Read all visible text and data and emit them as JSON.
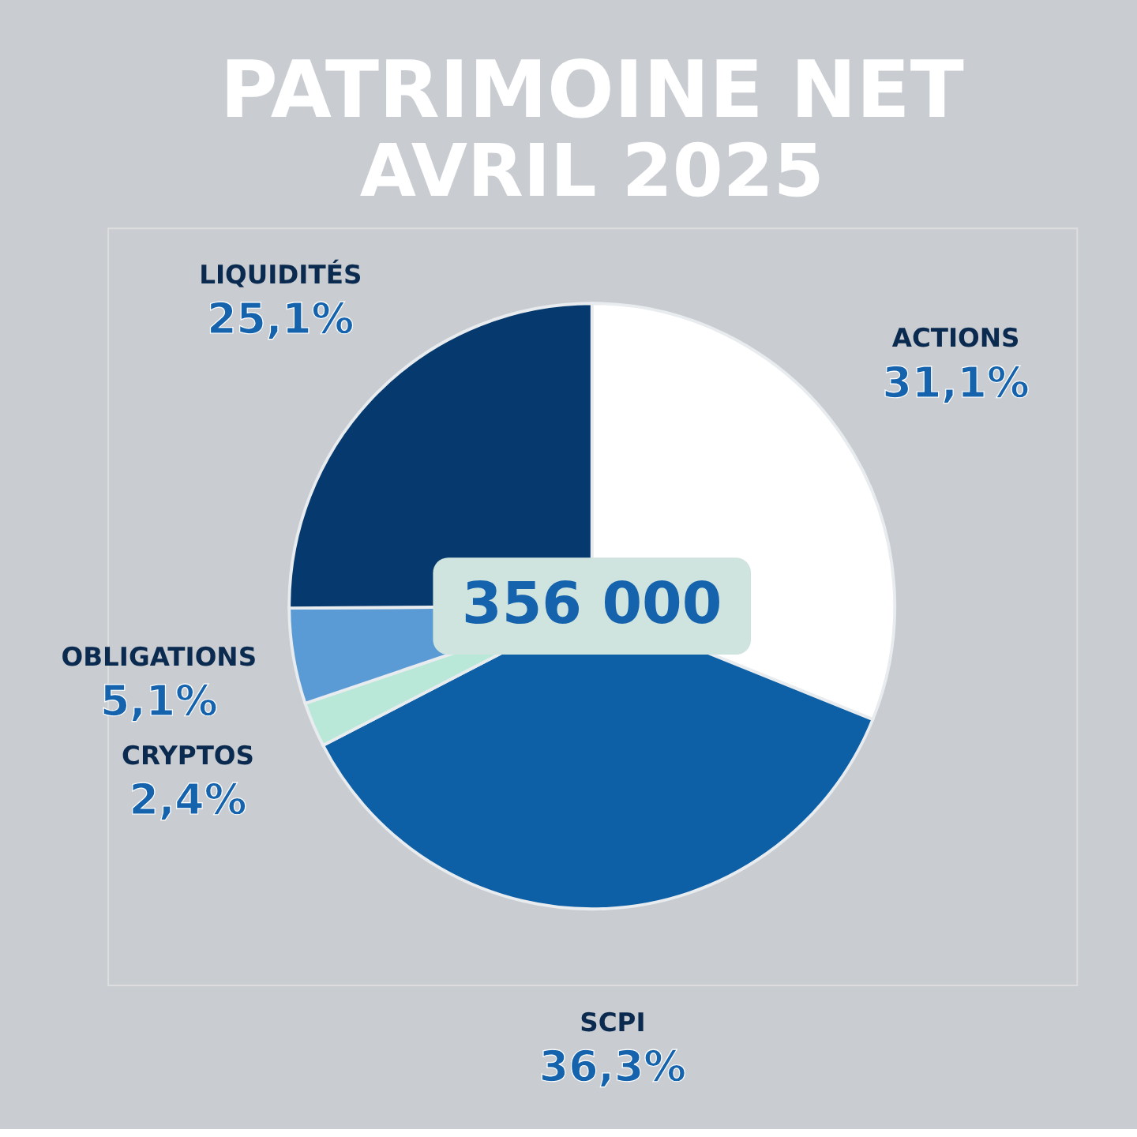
{
  "chart_data": {
    "type": "pie",
    "title": "PATRIMOINE NET",
    "subtitle": "AVRIL 2025",
    "categories": [
      "ACTIONS",
      "SCPI",
      "CRYPTOS",
      "OBLIGATIONS",
      "LIQUIDITÉS"
    ],
    "values": [
      31.1,
      36.3,
      2.4,
      5.1,
      25.1
    ],
    "colors": [
      "#ffffff",
      "#0d5fa6",
      "#b9e8d8",
      "#5b9bd5",
      "#063a6e"
    ],
    "value_labels": [
      "31,1%",
      "36,3%",
      "2,4%",
      "5,1%",
      "25,1%"
    ],
    "annotations": [
      "356 000"
    ]
  }
}
